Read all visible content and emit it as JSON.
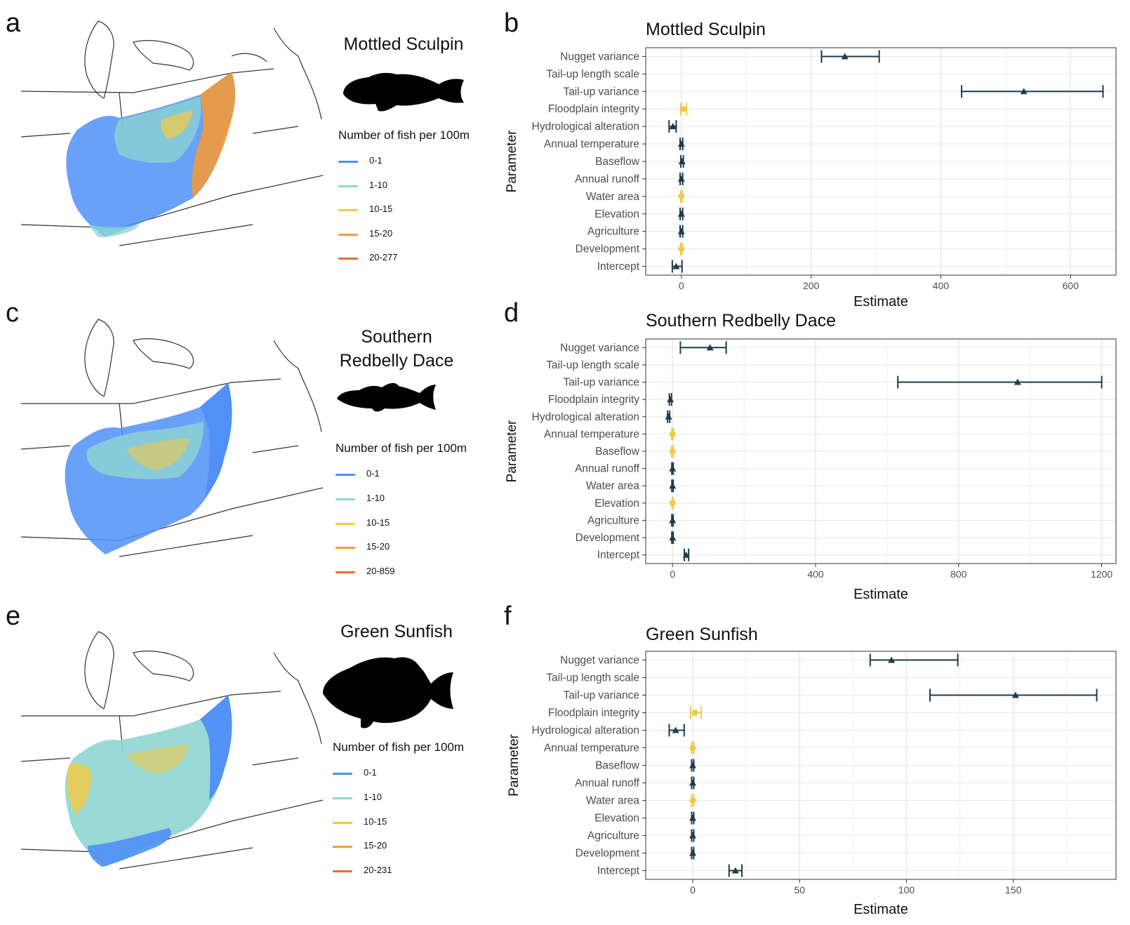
{
  "panels": [
    {
      "map_letter": "a",
      "chart_letter": "b",
      "species_lines": [
        "Mottled Sculpin"
      ],
      "legend_title": "Number of fish per 100m",
      "legend": [
        {
          "label": "0-1",
          "color": "#4f8ff7"
        },
        {
          "label": "1-10",
          "color": "#8fd6d2"
        },
        {
          "label": "10-15",
          "color": "#f6c942"
        },
        {
          "label": "15-20",
          "color": "#f39a3a"
        },
        {
          "label": "20-277",
          "color": "#ee6a33"
        }
      ]
    },
    {
      "map_letter": "c",
      "chart_letter": "d",
      "species_lines": [
        "Southern",
        "Redbelly Dace"
      ],
      "legend_title": "Number of fish per 100m",
      "legend": [
        {
          "label": "0-1",
          "color": "#4f8ff7"
        },
        {
          "label": "1-10",
          "color": "#8fd6d2"
        },
        {
          "label": "10-15",
          "color": "#f6c942"
        },
        {
          "label": "15-20",
          "color": "#f39a3a"
        },
        {
          "label": "20-859",
          "color": "#ee6a33"
        }
      ]
    },
    {
      "map_letter": "e",
      "chart_letter": "f",
      "species_lines": [
        "Green Sunfish"
      ],
      "legend_title": "Number of fish per 100m",
      "legend": [
        {
          "label": "0-1",
          "color": "#4f8ff7"
        },
        {
          "label": "1-10",
          "color": "#8fd6d2"
        },
        {
          "label": "10-15",
          "color": "#f6c942"
        },
        {
          "label": "15-20",
          "color": "#f39a3a"
        },
        {
          "label": "20-231",
          "color": "#ee6a33"
        }
      ]
    }
  ],
  "colors": {
    "significant": "#1d3c4c",
    "not_significant": "#f2c94c",
    "grid": "#e6e6e6",
    "axis_text": "#4d4d4d"
  },
  "chart_data": [
    {
      "type": "dot-errorbar",
      "title": "Mottled Sculpin",
      "xlabel": "Estimate",
      "ylabel": "Parameter",
      "xlim": [
        -55,
        670
      ],
      "xticks": [
        0,
        200,
        400,
        600
      ],
      "grid": true,
      "points": [
        {
          "parameter": "Nugget variance",
          "estimate": 252,
          "lower": 216,
          "upper": 305,
          "significant": true
        },
        {
          "parameter": "Tail-up length scale",
          "estimate": null,
          "lower": null,
          "upper": null,
          "significant": true
        },
        {
          "parameter": "Tail-up variance",
          "estimate": 528,
          "lower": 432,
          "upper": 650,
          "significant": true
        },
        {
          "parameter": "Floodplain integrity",
          "estimate": 3,
          "lower": -1,
          "upper": 8,
          "significant": false
        },
        {
          "parameter": "Hydrological alteration",
          "estimate": -13,
          "lower": -19,
          "upper": -8,
          "significant": true
        },
        {
          "parameter": "Annual temperature",
          "estimate": 0,
          "lower": -2,
          "upper": 2,
          "significant": true
        },
        {
          "parameter": "Baseflow",
          "estimate": 1,
          "lower": -1,
          "upper": 3,
          "significant": true
        },
        {
          "parameter": "Annual runoff",
          "estimate": 0,
          "lower": -2,
          "upper": 2,
          "significant": true
        },
        {
          "parameter": "Water area",
          "estimate": 0,
          "lower": -1,
          "upper": 1,
          "significant": false
        },
        {
          "parameter": "Elevation",
          "estimate": 0,
          "lower": -2,
          "upper": 2,
          "significant": true
        },
        {
          "parameter": "Agriculture",
          "estimate": 0,
          "lower": -2,
          "upper": 2,
          "significant": true
        },
        {
          "parameter": "Development",
          "estimate": 0,
          "lower": -1,
          "upper": 1,
          "significant": false
        },
        {
          "parameter": "Intercept",
          "estimate": -8,
          "lower": -14,
          "upper": 1,
          "significant": true
        }
      ]
    },
    {
      "type": "dot-errorbar",
      "title": "Southern Redbelly Dace",
      "xlabel": "Estimate",
      "ylabel": "Parameter",
      "xlim": [
        -75,
        1240
      ],
      "xticks": [
        0,
        400,
        800,
        1200
      ],
      "grid": true,
      "points": [
        {
          "parameter": "Nugget variance",
          "estimate": 105,
          "lower": 22,
          "upper": 150,
          "significant": true
        },
        {
          "parameter": "Tail-up length scale",
          "estimate": null,
          "lower": null,
          "upper": null,
          "significant": true
        },
        {
          "parameter": "Tail-up variance",
          "estimate": 965,
          "lower": 630,
          "upper": 1200,
          "significant": true
        },
        {
          "parameter": "Floodplain integrity",
          "estimate": -6,
          "lower": -9,
          "upper": -3,
          "significant": true
        },
        {
          "parameter": "Hydrological alteration",
          "estimate": -11,
          "lower": -14,
          "upper": -8,
          "significant": true
        },
        {
          "parameter": "Annual temperature",
          "estimate": 0,
          "lower": -2,
          "upper": 2,
          "significant": false
        },
        {
          "parameter": "Baseflow",
          "estimate": 0,
          "lower": -2,
          "upper": 2,
          "significant": false
        },
        {
          "parameter": "Annual runoff",
          "estimate": 0,
          "lower": -2,
          "upper": 2,
          "significant": true
        },
        {
          "parameter": "Water area",
          "estimate": 0,
          "lower": -2,
          "upper": 2,
          "significant": true
        },
        {
          "parameter": "Elevation",
          "estimate": 0,
          "lower": -1,
          "upper": 1,
          "significant": false
        },
        {
          "parameter": "Agriculture",
          "estimate": 0,
          "lower": -2,
          "upper": 2,
          "significant": true
        },
        {
          "parameter": "Development",
          "estimate": 0,
          "lower": -2,
          "upper": 2,
          "significant": true
        },
        {
          "parameter": "Intercept",
          "estimate": 38,
          "lower": 33,
          "upper": 45,
          "significant": true
        }
      ]
    },
    {
      "type": "dot-errorbar",
      "title": "Green Sunfish",
      "xlabel": "Estimate",
      "ylabel": "Parameter",
      "xlim": [
        -22,
        198
      ],
      "xticks": [
        0,
        50,
        100,
        150
      ],
      "grid": true,
      "points": [
        {
          "parameter": "Nugget variance",
          "estimate": 93,
          "lower": 83,
          "upper": 124,
          "significant": true
        },
        {
          "parameter": "Tail-up length scale",
          "estimate": null,
          "lower": null,
          "upper": null,
          "significant": true
        },
        {
          "parameter": "Tail-up variance",
          "estimate": 151,
          "lower": 111,
          "upper": 189,
          "significant": true
        },
        {
          "parameter": "Floodplain integrity",
          "estimate": 1,
          "lower": -1,
          "upper": 4,
          "significant": false
        },
        {
          "parameter": "Hydrological alteration",
          "estimate": -8,
          "lower": -11,
          "upper": -4,
          "significant": true
        },
        {
          "parameter": "Annual temperature",
          "estimate": 0,
          "lower": -0.5,
          "upper": 0.5,
          "significant": false
        },
        {
          "parameter": "Baseflow",
          "estimate": 0,
          "lower": -0.5,
          "upper": 0.5,
          "significant": true
        },
        {
          "parameter": "Annual runoff",
          "estimate": 0,
          "lower": -0.5,
          "upper": 0.5,
          "significant": true
        },
        {
          "parameter": "Water area",
          "estimate": 0,
          "lower": -0.5,
          "upper": 0.5,
          "significant": false
        },
        {
          "parameter": "Elevation",
          "estimate": 0,
          "lower": -0.5,
          "upper": 0.5,
          "significant": true
        },
        {
          "parameter": "Agriculture",
          "estimate": 0,
          "lower": -0.5,
          "upper": 0.5,
          "significant": true
        },
        {
          "parameter": "Development",
          "estimate": 0,
          "lower": -0.5,
          "upper": 0.5,
          "significant": true
        },
        {
          "parameter": "Intercept",
          "estimate": 20,
          "lower": 17,
          "upper": 23,
          "significant": true
        }
      ]
    }
  ]
}
